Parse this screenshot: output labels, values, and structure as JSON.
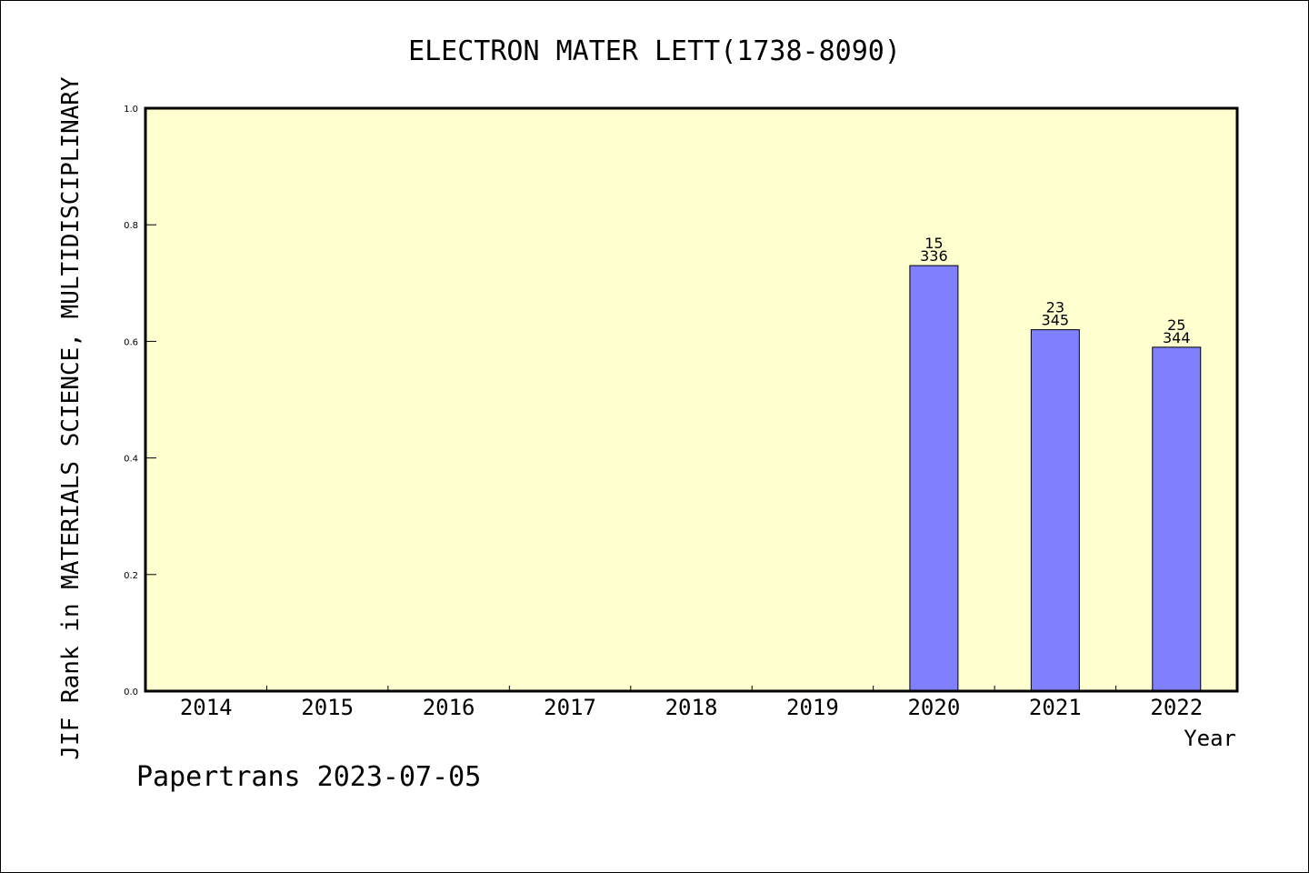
{
  "chart_data": {
    "type": "bar",
    "title": "ELECTRON MATER LETT(1738-8090)",
    "ylabel": "JIF Rank in MATERIALS SCIENCE, MULTIDISCIPLINARY",
    "xlabel": "Year",
    "categories": [
      "2014",
      "2015",
      "2016",
      "2017",
      "2018",
      "2019",
      "2020",
      "2021",
      "2022"
    ],
    "values": [
      null,
      null,
      null,
      null,
      null,
      null,
      0.73,
      0.62,
      0.59
    ],
    "bar_labels": [
      null,
      null,
      null,
      null,
      null,
      null,
      {
        "rank": "15",
        "total": "336"
      },
      {
        "rank": "23",
        "total": "345"
      },
      {
        "rank": "25",
        "total": "344"
      }
    ],
    "ylim": [
      0,
      1.0
    ],
    "yticks": [
      "0.0",
      "0.2",
      "0.4",
      "0.6",
      "0.8",
      "1.0"
    ],
    "ytick_values": [
      0,
      0.2,
      0.4,
      0.6,
      0.8,
      1.0
    ],
    "grid": false,
    "colors": {
      "plot_background": "#ffffd0",
      "bar_fill": "#8080ff",
      "bar_stroke": "#000000"
    }
  },
  "footer": {
    "source_text": "Papertrans 2023-07-05"
  }
}
